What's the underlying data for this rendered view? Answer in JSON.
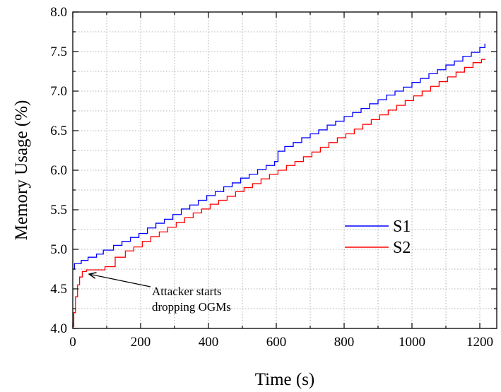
{
  "chart_data": {
    "type": "line",
    "title": "",
    "xlabel": "Time (s)",
    "ylabel": "Memory Usage (%)",
    "xlim": [
      0,
      1250
    ],
    "ylim": [
      4.0,
      8.0
    ],
    "x_ticks": [
      0,
      200,
      400,
      600,
      800,
      1000,
      1200
    ],
    "x_tick_labels": [
      "0",
      "200",
      "400",
      "600",
      "800",
      "1000",
      "1200"
    ],
    "y_ticks": [
      4.0,
      4.5,
      5.0,
      5.5,
      6.0,
      6.5,
      7.0,
      7.5,
      8.0
    ],
    "y_tick_labels": [
      "4.0",
      "4.5",
      "5.0",
      "5.5",
      "6.0",
      "6.5",
      "7.0",
      "7.5",
      "8.0"
    ],
    "grid": true,
    "legend_position": "center-right",
    "series": [
      {
        "name": "S1",
        "color": "#0000ff",
        "style": "step",
        "x": [
          0,
          5,
          25,
          45,
          70,
          90,
          120,
          145,
          170,
          195,
          220,
          245,
          270,
          295,
          320,
          345,
          370,
          395,
          420,
          445,
          470,
          495,
          520,
          545,
          570,
          595,
          605,
          625,
          650,
          675,
          700,
          725,
          750,
          775,
          800,
          825,
          850,
          875,
          900,
          925,
          950,
          975,
          1000,
          1025,
          1050,
          1075,
          1100,
          1125,
          1150,
          1175,
          1200,
          1215
        ],
        "y": [
          4.75,
          4.82,
          4.86,
          4.9,
          4.94,
          4.99,
          5.05,
          5.1,
          5.15,
          5.2,
          5.27,
          5.33,
          5.38,
          5.44,
          5.51,
          5.56,
          5.62,
          5.68,
          5.73,
          5.79,
          5.84,
          5.9,
          5.95,
          6.01,
          6.06,
          6.11,
          6.24,
          6.3,
          6.35,
          6.41,
          6.46,
          6.51,
          6.57,
          6.62,
          6.68,
          6.73,
          6.78,
          6.84,
          6.89,
          6.95,
          7.0,
          7.05,
          7.11,
          7.16,
          7.22,
          7.27,
          7.33,
          7.38,
          7.44,
          7.49,
          7.55,
          7.6
        ]
      },
      {
        "name": "S2",
        "color": "#ff0000",
        "style": "step",
        "x": [
          0,
          3,
          8,
          14,
          20,
          28,
          40,
          65,
          95,
          125,
          155,
          180,
          205,
          230,
          255,
          280,
          305,
          330,
          355,
          380,
          405,
          430,
          455,
          480,
          505,
          530,
          555,
          580,
          605,
          630,
          655,
          680,
          705,
          730,
          755,
          780,
          805,
          830,
          855,
          880,
          905,
          930,
          955,
          980,
          1005,
          1030,
          1055,
          1080,
          1105,
          1130,
          1155,
          1180,
          1205,
          1215
        ],
        "y": [
          4.02,
          4.2,
          4.4,
          4.55,
          4.65,
          4.72,
          4.74,
          4.74,
          4.78,
          4.9,
          4.98,
          5.03,
          5.1,
          5.16,
          5.22,
          5.28,
          5.34,
          5.4,
          5.46,
          5.51,
          5.57,
          5.62,
          5.67,
          5.73,
          5.78,
          5.83,
          5.89,
          5.95,
          6.0,
          6.06,
          6.11,
          6.17,
          6.23,
          6.29,
          6.35,
          6.41,
          6.46,
          6.52,
          6.58,
          6.64,
          6.7,
          6.76,
          6.82,
          6.88,
          6.94,
          7.0,
          7.06,
          7.12,
          7.18,
          7.24,
          7.3,
          7.36,
          7.4,
          7.41
        ]
      }
    ],
    "annotations": [
      {
        "text_lines": [
          "Attacker starts",
          "dropping OGMs"
        ],
        "arrow_to": {
          "x": 40,
          "y": 4.74
        }
      }
    ]
  }
}
